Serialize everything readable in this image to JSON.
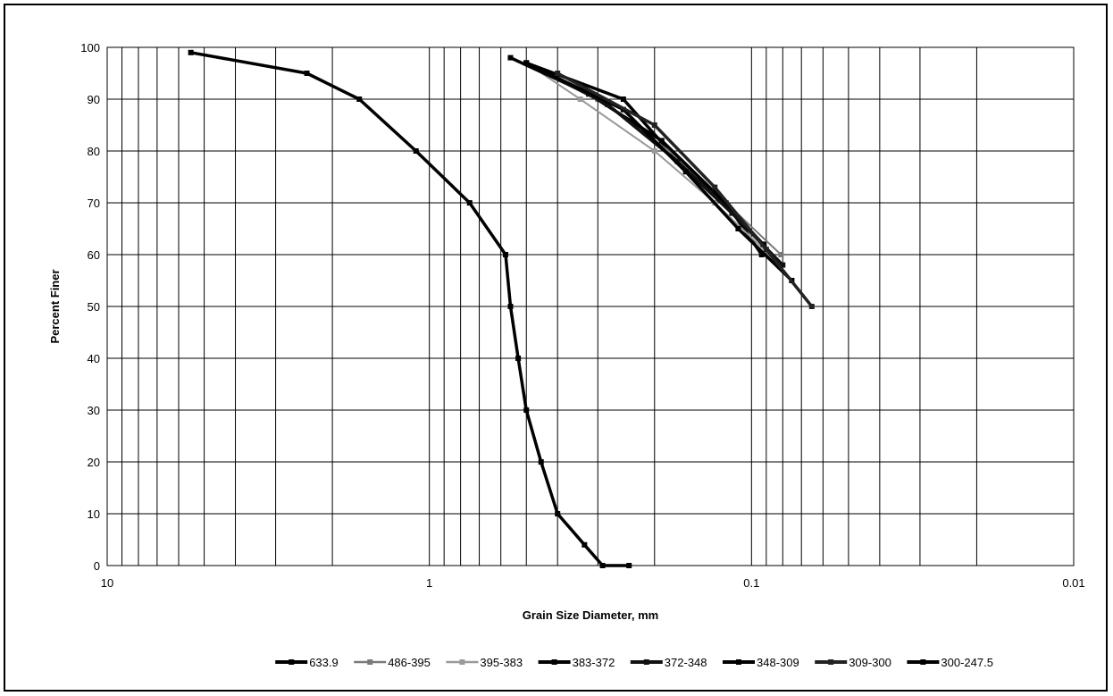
{
  "chart_data": {
    "type": "line",
    "title": "",
    "xlabel": "Grain Size Diameter, mm",
    "ylabel": "Percent Finer",
    "x_scale": "log",
    "x_reversed": true,
    "xlim": [
      10,
      0.01
    ],
    "ylim": [
      0,
      100
    ],
    "grid": true,
    "legend_position": "bottom",
    "x_ticks": [
      {
        "value": 10,
        "label": "10"
      },
      {
        "value": 1,
        "label": "1"
      },
      {
        "value": 0.1,
        "label": "0.1"
      },
      {
        "value": 0.01,
        "label": "0.01"
      }
    ],
    "y_ticks": [
      {
        "value": 0,
        "label": "0"
      },
      {
        "value": 10,
        "label": "10"
      },
      {
        "value": 20,
        "label": "20"
      },
      {
        "value": 30,
        "label": "30"
      },
      {
        "value": 40,
        "label": "40"
      },
      {
        "value": 50,
        "label": "50"
      },
      {
        "value": 60,
        "label": "60"
      },
      {
        "value": 70,
        "label": "70"
      },
      {
        "value": 80,
        "label": "80"
      },
      {
        "value": 90,
        "label": "90"
      },
      {
        "value": 100,
        "label": "100"
      }
    ],
    "series": [
      {
        "name": "633.9",
        "color": "#000000",
        "weight": "heavy",
        "x": [
          0.5,
          0.25,
          0.18,
          0.12,
          0.093
        ],
        "y": [
          97,
          90,
          80,
          70,
          60
        ]
      },
      {
        "name": "486-395",
        "color": "#7a7a7a",
        "weight": "light",
        "x": [
          0.5,
          0.3,
          0.18,
          0.12,
          0.081
        ],
        "y": [
          97,
          90,
          80,
          70,
          60
        ]
      },
      {
        "name": "395-383",
        "color": "#9a9a9a",
        "weight": "light",
        "x": [
          0.5,
          0.34,
          0.2,
          0.13,
          0.088
        ],
        "y": [
          97,
          90,
          80,
          70,
          60
        ]
      },
      {
        "name": "383-372",
        "color": "#000000",
        "weight": "heavy",
        "x": [
          0.56,
          0.32,
          0.19,
          0.13,
          0.092
        ],
        "y": [
          98,
          91,
          82,
          72,
          62
        ]
      },
      {
        "name": "372-348",
        "color": "#111111",
        "weight": "heavy",
        "x": [
          0.5,
          0.28,
          0.17,
          0.115,
          0.08
        ],
        "y": [
          97,
          89,
          78,
          68,
          58
        ]
      },
      {
        "name": "348-309",
        "color": "#000000",
        "weight": "heavy",
        "x": [
          0.5,
          0.25,
          0.16,
          0.11,
          0.075
        ],
        "y": [
          97,
          88,
          76,
          65,
          55
        ]
      },
      {
        "name": "309-300",
        "color": "#222222",
        "weight": "heavy",
        "x": [
          0.4,
          0.2,
          0.13,
          0.09,
          0.065
        ],
        "y": [
          95,
          85,
          73,
          61,
          50
        ]
      },
      {
        "name": "300-247.5",
        "color": "#000000",
        "weight": "heavy",
        "x": [
          5.5,
          2.4,
          1.65,
          1.1,
          0.75,
          0.58,
          0.56,
          0.53,
          0.5,
          0.45,
          0.4,
          0.33,
          0.29,
          0.24
        ],
        "y": [
          99,
          95,
          90,
          80,
          70,
          60,
          50,
          40,
          30,
          20,
          10,
          4,
          0,
          0
        ]
      }
    ]
  }
}
